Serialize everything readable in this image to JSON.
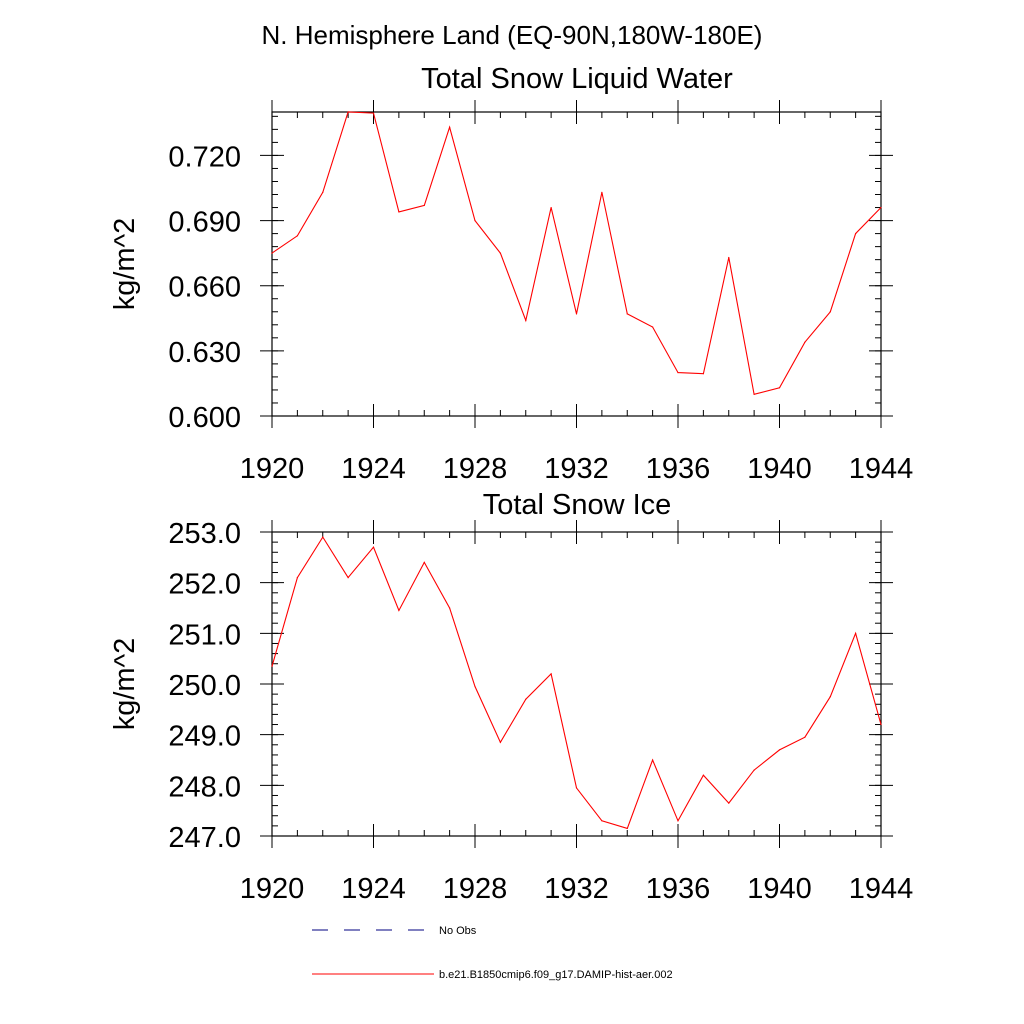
{
  "suptitle": "N. Hemisphere Land (EQ-90N,180W-180E)",
  "colors": {
    "model_line": "#ff0000",
    "obs_line": "#000080",
    "axes": "#000000"
  },
  "chart_data": [
    {
      "type": "line",
      "title": "Total Snow Liquid Water",
      "xlabel": "",
      "ylabel": "kg/m^2",
      "xlim": [
        1920,
        1944
      ],
      "ylim": [
        0.6,
        0.74
      ],
      "xticks": [
        1920,
        1924,
        1928,
        1932,
        1936,
        1940,
        1944
      ],
      "xtick_labels": [
        "1920",
        "1924",
        "1928",
        "1932",
        "1936",
        "1940",
        "1944"
      ],
      "yticks": [
        0.6,
        0.63,
        0.66,
        0.69,
        0.72
      ],
      "ytick_labels": [
        "0.600",
        "0.630",
        "0.660",
        "0.690",
        "0.720"
      ],
      "grid": false,
      "x": [
        1920,
        1921,
        1922,
        1923,
        1924,
        1925,
        1926,
        1927,
        1928,
        1929,
        1930,
        1931,
        1932,
        1933,
        1934,
        1935,
        1936,
        1937,
        1938,
        1939,
        1940,
        1941,
        1942,
        1943,
        1944
      ],
      "series": [
        {
          "name": "b.e21.B1850cmip6.f09_g17.DAMIP-hist-aer.002",
          "values": [
            0.675,
            0.683,
            0.703,
            0.74,
            0.7395,
            0.694,
            0.697,
            0.733,
            0.69,
            0.675,
            0.644,
            0.696,
            0.647,
            0.703,
            0.647,
            0.641,
            0.62,
            0.6195,
            0.673,
            0.61,
            0.613,
            0.634,
            0.648,
            0.684,
            0.696
          ]
        }
      ]
    },
    {
      "type": "line",
      "title": "Total Snow Ice",
      "xlabel": "",
      "ylabel": "kg/m^2",
      "xlim": [
        1920,
        1944
      ],
      "ylim": [
        247.0,
        253.0
      ],
      "xticks": [
        1920,
        1924,
        1928,
        1932,
        1936,
        1940,
        1944
      ],
      "xtick_labels": [
        "1920",
        "1924",
        "1928",
        "1932",
        "1936",
        "1940",
        "1944"
      ],
      "yticks": [
        247,
        248,
        249,
        250,
        251,
        252,
        253
      ],
      "ytick_labels": [
        "247.0",
        "248.0",
        "249.0",
        "250.0",
        "251.0",
        "252.0",
        "253.0"
      ],
      "grid": false,
      "x": [
        1920,
        1921,
        1922,
        1923,
        1924,
        1925,
        1926,
        1927,
        1928,
        1929,
        1930,
        1931,
        1932,
        1933,
        1934,
        1935,
        1936,
        1937,
        1938,
        1939,
        1940,
        1941,
        1942,
        1943,
        1944
      ],
      "series": [
        {
          "name": "b.e21.B1850cmip6.f09_g17.DAMIP-hist-aer.002",
          "values": [
            250.35,
            252.1,
            252.9,
            252.1,
            252.7,
            251.45,
            252.4,
            251.5,
            249.95,
            248.85,
            249.7,
            250.2,
            247.95,
            247.3,
            247.15,
            248.5,
            247.3,
            248.2,
            247.65,
            248.3,
            248.7,
            248.95,
            249.75,
            251.0,
            249.2
          ]
        }
      ]
    }
  ],
  "legend": {
    "placement": "bottom-center",
    "entries": [
      {
        "label": "No Obs",
        "style": "dashed",
        "color": "#000080"
      },
      {
        "label": "b.e21.B1850cmip6.f09_g17.DAMIP-hist-aer.002",
        "style": "solid",
        "color": "#ff0000"
      }
    ]
  }
}
